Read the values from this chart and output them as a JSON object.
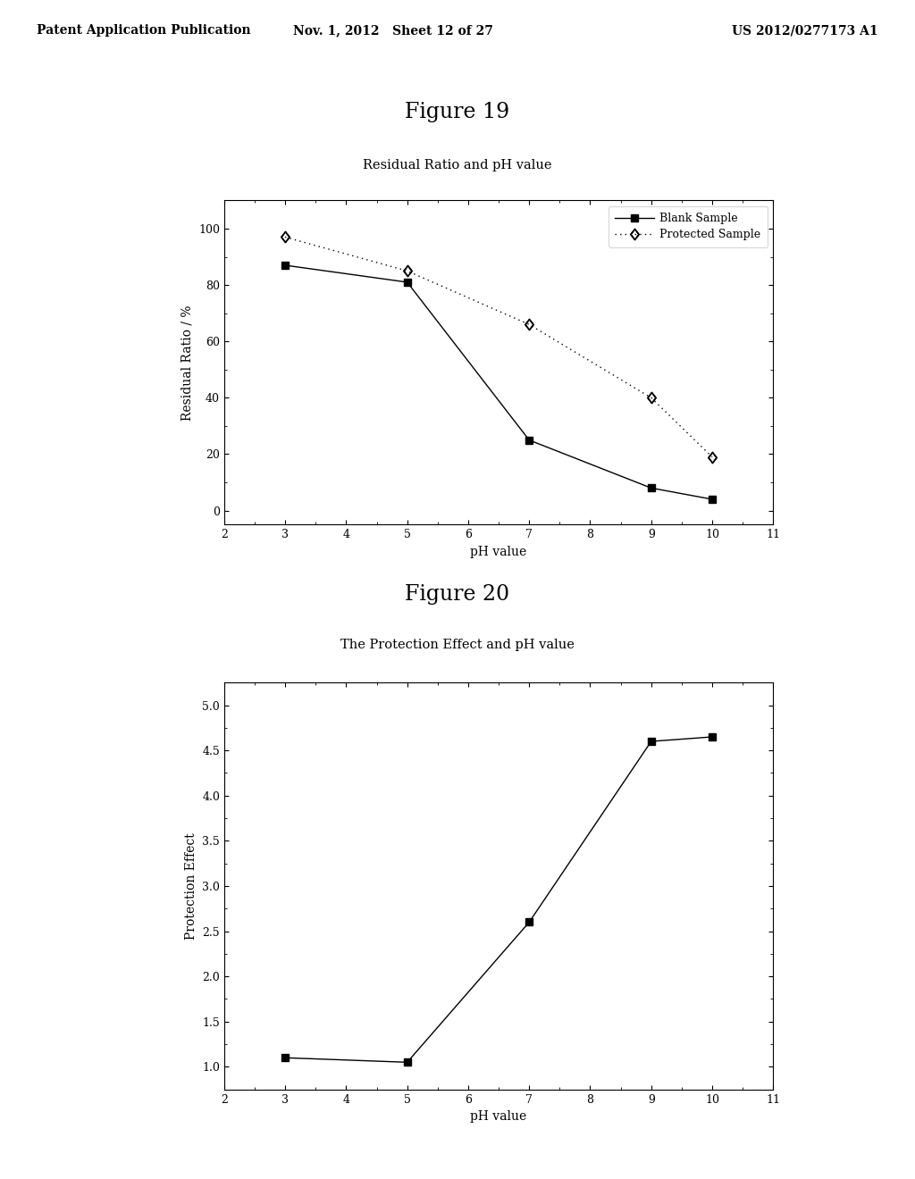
{
  "fig19": {
    "title": "Figure 19",
    "subtitle": "Residual Ratio and pH value",
    "blank_x": [
      3,
      5,
      7,
      9,
      10
    ],
    "blank_y": [
      87,
      81,
      25,
      8,
      4
    ],
    "protected_x": [
      3,
      5,
      7,
      9,
      10
    ],
    "protected_y": [
      97,
      85,
      66,
      40,
      19
    ],
    "xlabel": "pH value",
    "ylabel": "Residual Ratio / %",
    "xlim": [
      2,
      11
    ],
    "ylim": [
      -5,
      110
    ],
    "xticks": [
      2,
      3,
      4,
      5,
      6,
      7,
      8,
      9,
      10,
      11
    ],
    "yticks": [
      0,
      20,
      40,
      60,
      80,
      100
    ],
    "blank_label": "Blank Sample",
    "protected_label": "Protected Sample"
  },
  "fig20": {
    "title": "Figure 20",
    "subtitle": "The Protection Effect and pH value",
    "x": [
      3,
      5,
      7,
      9,
      10
    ],
    "y": [
      1.1,
      1.05,
      2.6,
      4.6,
      4.65
    ],
    "xlabel": "pH value",
    "ylabel": "Protection Effect",
    "xlim": [
      2,
      11
    ],
    "ylim": [
      0.75,
      5.25
    ],
    "xticks": [
      2,
      3,
      4,
      5,
      6,
      7,
      8,
      9,
      10,
      11
    ],
    "yticks": [
      1.0,
      1.5,
      2.0,
      2.5,
      3.0,
      3.5,
      4.0,
      4.5,
      5.0
    ]
  },
  "background_color": "#ffffff",
  "header_left": "Patent Application Publication",
  "header_mid": "Nov. 1, 2012   Sheet 12 of 27",
  "header_right": "US 2012/0277173 A1",
  "line_color": "black"
}
